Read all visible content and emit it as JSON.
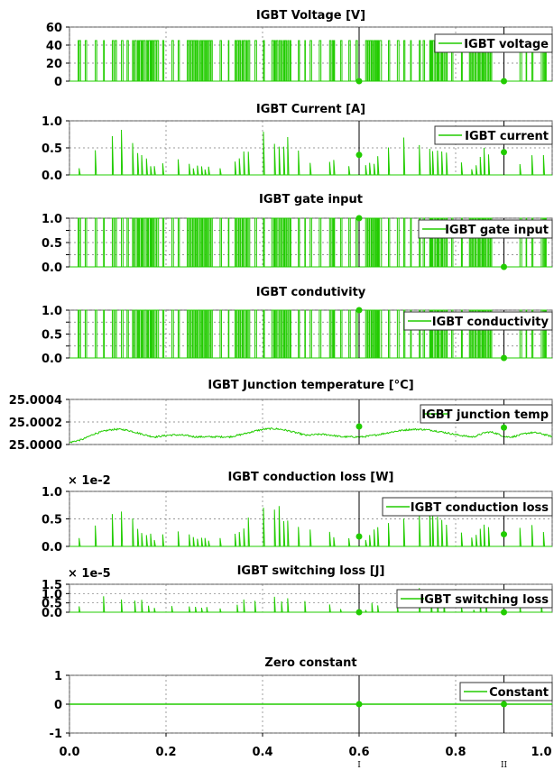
{
  "chart_data": [
    {
      "type": "line",
      "title": "IGBT Voltage [V]",
      "series": [
        {
          "name": "IGBT voltage",
          "color": "#22cc00",
          "signal": "switching",
          "high": 45,
          "low": 0
        }
      ],
      "ylim": [
        0,
        60
      ],
      "yticks": [
        0,
        20,
        40,
        60
      ],
      "ytick_labels": [
        "0",
        "20",
        "40",
        "60"
      ],
      "multiplier": "",
      "cursor_values": [
        0,
        0
      ]
    },
    {
      "type": "line",
      "title": "IGBT Current [A]",
      "series": [
        {
          "name": "IGBT current",
          "color": "#22cc00",
          "signal": "current"
        }
      ],
      "ylim": [
        0,
        1.0
      ],
      "yticks": [
        0,
        0.5,
        1.0
      ],
      "ytick_labels": [
        "0.0",
        "0.5",
        "1.0"
      ],
      "multiplier": "",
      "cursor_values": [
        0.37,
        0.42
      ]
    },
    {
      "type": "line",
      "title": "IGBT gate input",
      "series": [
        {
          "name": "IGBT gate input",
          "color": "#22cc00",
          "signal": "switching",
          "high": 1.0,
          "low": 0
        }
      ],
      "ylim": [
        0,
        1.0
      ],
      "yticks": [
        0,
        0.25,
        0.5,
        0.75,
        1.0
      ],
      "ytick_labels": [
        "0.0",
        "0.25",
        "0.5",
        "0.75",
        "1.0"
      ],
      "multiplier": "",
      "cursor_values": [
        1.0,
        0
      ]
    },
    {
      "type": "line",
      "title": "IGBT condutivity",
      "series": [
        {
          "name": "IGBT conductivity",
          "color": "#22cc00",
          "signal": "switching",
          "high": 1.0,
          "low": 0
        }
      ],
      "ylim": [
        0,
        1.0
      ],
      "yticks": [
        0,
        0.25,
        0.5,
        0.75,
        1.0
      ],
      "ytick_labels": [
        "0.0",
        "0.25",
        "0.5",
        "0.75",
        "1.0"
      ],
      "multiplier": "",
      "cursor_values": [
        1.0,
        0
      ]
    },
    {
      "type": "line",
      "title": "IGBT Junction temperature [°C]",
      "series": [
        {
          "name": "IGBT junction temp",
          "color": "#22cc00",
          "signal": "temperature"
        }
      ],
      "ylim": [
        25.0,
        25.0004
      ],
      "yticks": [
        25.0,
        25.0002,
        25.0004
      ],
      "ytick_labels": [
        "25.0000",
        "25.0002",
        "25.0004"
      ],
      "multiplier": "",
      "cursor_values": [
        25.00016,
        25.00015
      ]
    },
    {
      "type": "line",
      "title": "IGBT conduction loss [W]",
      "series": [
        {
          "name": "IGBT conduction loss",
          "color": "#22cc00",
          "signal": "current"
        }
      ],
      "ylim": [
        0,
        1.0
      ],
      "yticks": [
        0,
        0.5,
        1.0
      ],
      "ytick_labels": [
        "0.0",
        "0.5",
        "1.0"
      ],
      "multiplier": "× 1e-2",
      "cursor_values": [
        0.18,
        0.22
      ]
    },
    {
      "type": "line",
      "title": "IGBT switching loss [J]",
      "series": [
        {
          "name": "IGBT switching loss",
          "color": "#22cc00",
          "signal": "spikes"
        }
      ],
      "ylim": [
        0,
        1.5
      ],
      "yticks": [
        0,
        0.5,
        1.0,
        1.5
      ],
      "ytick_labels": [
        "0.0",
        "0.5",
        "1.0",
        "1.5"
      ],
      "multiplier": "× 1e-5",
      "cursor_values": [
        0,
        0
      ]
    },
    {
      "type": "line",
      "title": "Zero constant",
      "series": [
        {
          "name": "Constant",
          "color": "#22cc00",
          "signal": "zero"
        }
      ],
      "ylim": [
        -1,
        1
      ],
      "yticks": [
        -1,
        0,
        1
      ],
      "ytick_labels": [
        "-1",
        "0",
        "1"
      ],
      "multiplier": "",
      "cursor_values": [
        0,
        0
      ]
    }
  ],
  "x_axis": {
    "xlim": [
      0.0,
      1.0
    ],
    "xticks": [
      0.0,
      0.2,
      0.4,
      0.6,
      0.8,
      1.0
    ],
    "xtick_labels": [
      "0.0",
      "0.2",
      "0.4",
      "0.6",
      "0.8",
      "1.0"
    ]
  },
  "cursors": [
    {
      "x": 0.6,
      "label": "I"
    },
    {
      "x": 0.9,
      "label": "II"
    }
  ],
  "grid": true,
  "legend_placement": "top-right"
}
